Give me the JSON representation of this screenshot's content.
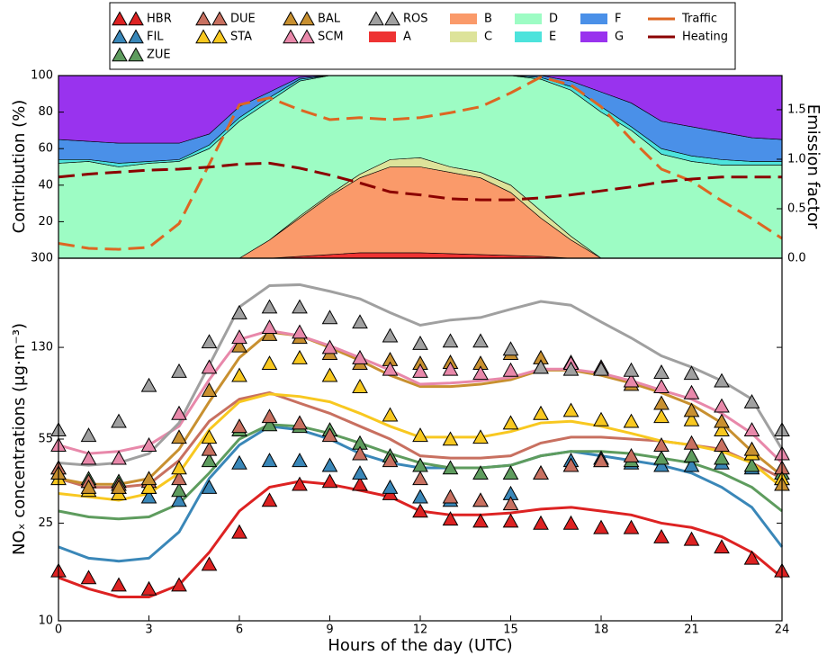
{
  "chart_data": [
    {
      "type": "area",
      "stacked": true,
      "ylabel": "Contribution (%)",
      "y2label": "Emission factor",
      "x": [
        0,
        1,
        2,
        3,
        4,
        5,
        6,
        7,
        8,
        9,
        10,
        11,
        12,
        13,
        14,
        15,
        16,
        17,
        18,
        19,
        20,
        21,
        22,
        23,
        24
      ],
      "xlim": [
        0,
        24
      ],
      "ylim": [
        0,
        100
      ],
      "yticks": [
        20,
        40,
        60,
        80,
        100
      ],
      "y2lim": [
        0,
        1.845
      ],
      "y2ticks": [
        {
          "value": 0,
          "label": "0.0"
        },
        0.5,
        {
          "value": 1,
          "label": "1.0"
        },
        1.5
      ],
      "series": [
        {
          "name": "A",
          "color": "#ee3333",
          "values": [
            0,
            0,
            0,
            0,
            0,
            0,
            0,
            0,
            1,
            2,
            3,
            3,
            3,
            2.5,
            2,
            1.5,
            1,
            0,
            0,
            0,
            0,
            0,
            0,
            0,
            0
          ]
        },
        {
          "name": "B",
          "color": "#fa9a6a",
          "values": [
            0,
            0,
            0,
            0,
            0,
            0,
            0,
            10,
            21,
            32,
            41,
            47,
            47,
            44.5,
            42,
            34.5,
            21,
            10,
            0,
            0,
            0,
            0,
            0,
            0,
            0
          ]
        },
        {
          "name": "C",
          "color": "#dde39a",
          "values": [
            0,
            0,
            0,
            0,
            0,
            0,
            0,
            0,
            1,
            1,
            2,
            4,
            5,
            3,
            3,
            4,
            4,
            2,
            0,
            0,
            0,
            0,
            0,
            0,
            0
          ]
        },
        {
          "name": "D",
          "color": "#9dfcc4",
          "values": [
            52,
            53,
            50,
            52,
            53,
            60,
            75,
            76,
            74,
            65,
            54,
            46,
            45,
            50,
            53,
            60,
            72,
            80,
            80,
            70,
            57,
            53,
            51,
            51,
            51
          ]
        },
        {
          "name": "E",
          "color": "#4de3dc",
          "values": [
            2,
            1,
            2,
            1,
            1,
            2,
            2,
            2,
            1,
            0,
            0,
            0,
            0,
            0,
            0,
            0,
            1,
            2,
            3,
            2,
            3,
            3,
            3,
            2,
            2
          ]
        },
        {
          "name": "F",
          "color": "#4a90e8",
          "values": [
            11,
            10,
            11,
            10,
            9,
            6,
            6,
            3,
            1,
            0,
            0,
            0,
            0,
            0,
            0,
            0,
            1,
            3,
            8,
            13,
            15,
            16,
            15,
            13,
            12
          ]
        },
        {
          "name": "G",
          "color": "#9933ee",
          "values": [
            35,
            36,
            37,
            37,
            37,
            32,
            17,
            9,
            1,
            0,
            0,
            0,
            0,
            0,
            0,
            0,
            0,
            3,
            9,
            15,
            25,
            28,
            31,
            34,
            35
          ]
        },
        {
          "name": "Traffic",
          "color": "#dd6622",
          "axis": "y2",
          "line_style": "dashed",
          "values": [
            0.15,
            0.1,
            0.09,
            0.11,
            0.35,
            0.95,
            1.55,
            1.62,
            1.5,
            1.4,
            1.42,
            1.4,
            1.42,
            1.47,
            1.53,
            1.67,
            1.83,
            1.75,
            1.53,
            1.2,
            0.9,
            0.78,
            0.58,
            0.4,
            0.2
          ]
        },
        {
          "name": "Heating",
          "color": "#8b0000",
          "axis": "y2",
          "line_style": "dashed",
          "values": [
            0.82,
            0.85,
            0.87,
            0.89,
            0.9,
            0.92,
            0.95,
            0.96,
            0.91,
            0.84,
            0.76,
            0.67,
            0.64,
            0.6,
            0.59,
            0.59,
            0.61,
            0.64,
            0.68,
            0.72,
            0.77,
            0.8,
            0.82,
            0.82,
            0.82
          ]
        }
      ]
    },
    {
      "type": "line",
      "log_scale": true,
      "xlabel": "Hours of the day (UTC)",
      "ylabel": "NOₓ concentrations (μg·m⁻³)",
      "x": [
        0,
        1,
        2,
        3,
        4,
        5,
        6,
        7,
        8,
        9,
        10,
        11,
        12,
        13,
        14,
        15,
        16,
        17,
        18,
        19,
        20,
        21,
        22,
        23,
        24
      ],
      "xlim": [
        0,
        24
      ],
      "xticks": [
        0,
        3,
        6,
        9,
        12,
        15,
        18,
        21,
        24
      ],
      "ylim": [
        10,
        300
      ],
      "yticks": [
        10,
        25,
        55,
        130,
        300
      ],
      "series": [
        {
          "name": "HBR",
          "color": "#dd2222",
          "values": [
            15,
            13.5,
            12.5,
            12.5,
            14,
            19,
            28,
            35,
            37,
            36,
            34,
            32,
            28,
            27,
            27,
            27.5,
            28.5,
            29,
            28,
            27,
            25,
            24,
            22,
            19,
            15
          ],
          "markers": [
            16,
            15,
            14,
            13.5,
            14,
            17,
            23,
            31,
            36,
            37,
            36,
            33,
            28,
            26,
            25.5,
            25.5,
            25,
            25,
            24,
            24,
            22,
            21.5,
            20,
            18,
            16
          ]
        },
        {
          "name": "FIL",
          "color": "#3a87b8",
          "values": [
            20,
            18,
            17.5,
            18,
            23,
            38,
            52,
            62,
            60,
            55,
            48,
            44,
            42,
            42,
            42,
            43,
            47,
            49,
            47,
            45,
            43,
            40,
            35,
            29,
            20
          ],
          "markers": [
            40,
            37,
            35,
            32,
            31,
            35,
            44,
            45,
            45,
            43,
            40,
            35,
            32,
            31,
            31,
            33,
            40,
            45,
            46,
            44,
            43,
            43,
            44,
            42,
            38
          ]
        },
        {
          "name": "ZUE",
          "color": "#5e9c5e",
          "values": [
            28,
            26.5,
            26,
            26.5,
            30,
            40,
            55,
            63,
            62,
            58,
            53,
            48,
            44,
            42,
            42,
            43,
            47,
            49,
            49,
            48,
            46,
            44,
            40,
            35,
            28
          ],
          "markers": [
            42,
            38,
            37,
            35,
            34,
            45,
            60,
            63,
            62,
            60,
            53,
            47,
            43,
            42,
            40,
            40,
            40,
            43,
            45,
            45,
            46,
            47,
            46,
            43,
            40
          ]
        },
        {
          "name": "DUE",
          "color": "#c87060",
          "values": [
            38,
            35,
            35,
            36,
            45,
            65,
            80,
            85,
            77,
            70,
            62,
            55,
            47,
            46,
            46,
            47,
            53,
            56,
            56,
            55,
            54,
            52,
            50,
            44,
            38
          ],
          "markers": [
            42,
            37,
            36,
            37,
            38,
            50,
            62,
            68,
            64,
            57,
            48,
            45,
            38,
            32,
            31,
            30,
            40,
            43,
            45,
            47,
            52,
            53,
            52,
            48,
            42
          ]
        },
        {
          "name": "STA",
          "color": "#f8c820",
          "values": [
            33,
            32,
            31,
            33,
            40,
            60,
            78,
            84,
            82,
            78,
            70,
            62,
            56,
            56,
            56,
            59,
            64,
            65,
            62,
            58,
            54,
            52,
            49,
            44,
            35
          ],
          "markers": [
            38,
            34,
            33,
            35,
            42,
            56,
            100,
            112,
            118,
            100,
            90,
            69,
            57,
            55,
            56,
            64,
            70,
            72,
            66,
            65,
            68,
            66,
            60,
            48,
            38
          ]
        },
        {
          "name": "BAL",
          "color": "#c89030",
          "values": [
            38,
            36,
            36,
            38,
            50,
            78,
            118,
            150,
            145,
            130,
            115,
            100,
            90,
            90,
            92,
            96,
            105,
            105,
            100,
            93,
            85,
            76,
            64,
            49,
            39
          ],
          "markers": [
            40,
            35,
            35,
            38,
            56,
            87,
            132,
            147,
            143,
            123,
            112,
            116,
            112,
            113,
            112,
            123,
            118,
            113,
            108,
            92,
            77,
            72,
            65,
            50,
            36
          ]
        },
        {
          "name": "SCM",
          "color": "#e888aa",
          "values": [
            52,
            48,
            49,
            52,
            62,
            96,
            140,
            152,
            145,
            132,
            118,
            105,
            92,
            93,
            95,
            98,
            106,
            106,
            102,
            95,
            87,
            80,
            70,
            58,
            44
          ],
          "markers": [
            52,
            46,
            46,
            52,
            70,
            108,
            143,
            157,
            150,
            130,
            118,
            106,
            104,
            106,
            102,
            105,
            108,
            112,
            108,
            95,
            90,
            85,
            75,
            60,
            48
          ]
        },
        {
          "name": "ROS",
          "color": "#a0a0a0",
          "values": [
            44,
            43,
            44,
            48,
            64,
            110,
            190,
            232,
            234,
            220,
            205,
            180,
            160,
            168,
            172,
            186,
            200,
            193,
            165,
            142,
            120,
            108,
            95,
            80,
            50
          ],
          "markers": [
            60,
            57,
            65,
            91,
            104,
            137,
            180,
            190,
            190,
            172,
            165,
            145,
            135,
            138,
            138,
            128,
            108,
            106,
            106,
            105,
            103,
            102,
            95,
            78,
            60
          ]
        }
      ]
    }
  ]
}
